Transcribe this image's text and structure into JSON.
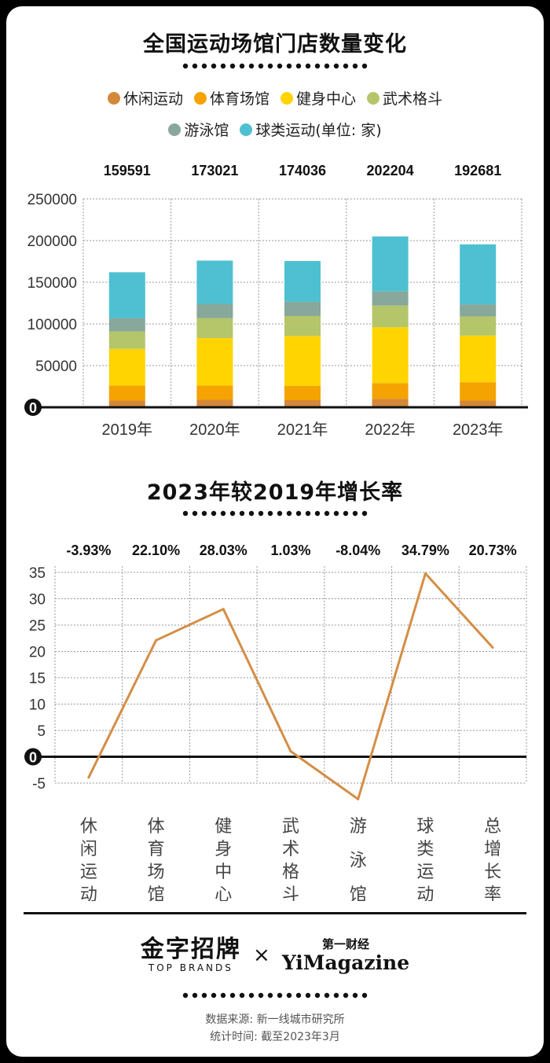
{
  "colors": {
    "leisure": "#D4883A",
    "stadium": "#F4A300",
    "fitness": "#FFD400",
    "martial": "#B5C56A",
    "swimming": "#87A89A",
    "ball": "#4EC0D2",
    "line": "#D48E45"
  },
  "chart_data": [
    {
      "type": "bar",
      "title": "全国运动场馆门店数量变化",
      "legend": [
        {
          "name": "休闲运动",
          "color": "#D4883A"
        },
        {
          "name": "体育场馆",
          "color": "#F4A300"
        },
        {
          "name": "健身中心",
          "color": "#FFD400"
        },
        {
          "name": "武术格斗",
          "color": "#B5C56A"
        },
        {
          "name": "游泳馆",
          "color": "#87A89A"
        },
        {
          "name": "球类运动(单位: 家)",
          "color": "#4EC0D2"
        }
      ],
      "categories": [
        "2019年",
        "2020年",
        "2021年",
        "2022年",
        "2023年"
      ],
      "totals": [
        "159591",
        "173021",
        "174036",
        "202204",
        "192681"
      ],
      "series": [
        {
          "name": "休闲运动",
          "values": [
            8000,
            9000,
            8500,
            10000,
            8000
          ]
        },
        {
          "name": "体育场馆",
          "values": [
            18000,
            17000,
            17000,
            19000,
            22000
          ]
        },
        {
          "name": "健身中心",
          "values": [
            44000,
            57000,
            60000,
            67000,
            56000
          ]
        },
        {
          "name": "武术格斗",
          "values": [
            21000,
            24000,
            24000,
            26000,
            23000
          ]
        },
        {
          "name": "游泳馆",
          "values": [
            16000,
            17000,
            17000,
            17000,
            14500
          ]
        },
        {
          "name": "球类运动",
          "values": [
            55000,
            52000,
            49000,
            66000,
            72000
          ]
        }
      ],
      "yticks": [
        "250000",
        "200000",
        "150000",
        "100000",
        "50000",
        "0"
      ],
      "ylim": [
        0,
        250000
      ]
    },
    {
      "type": "line",
      "title": "2023年较2019年增长率",
      "categories": [
        "休闲运动",
        "体育场馆",
        "健身中心",
        "武术格斗",
        "游泳馆",
        "球类运动",
        "总增长率"
      ],
      "values": [
        -3.93,
        22.1,
        28.03,
        1.03,
        -8.04,
        34.79,
        20.73
      ],
      "value_labels": [
        "-3.93%",
        "22.10%",
        "28.03%",
        "1.03%",
        "-8.04%",
        "34.79%",
        "20.73%"
      ],
      "yticks": [
        "35",
        "30",
        "25",
        "20",
        "15",
        "10",
        "5",
        "0",
        "-5"
      ],
      "ylim": [
        -5,
        35
      ]
    }
  ],
  "brand": {
    "left_cn": "金字招牌",
    "left_en": "TOP BRANDS",
    "times": "×",
    "right_cn": "第一财经",
    "right_en": "YiMagazine"
  },
  "footer": {
    "source": "数据来源: 新一线城市研究所",
    "time": "统计时间: 截至2023年3月"
  }
}
